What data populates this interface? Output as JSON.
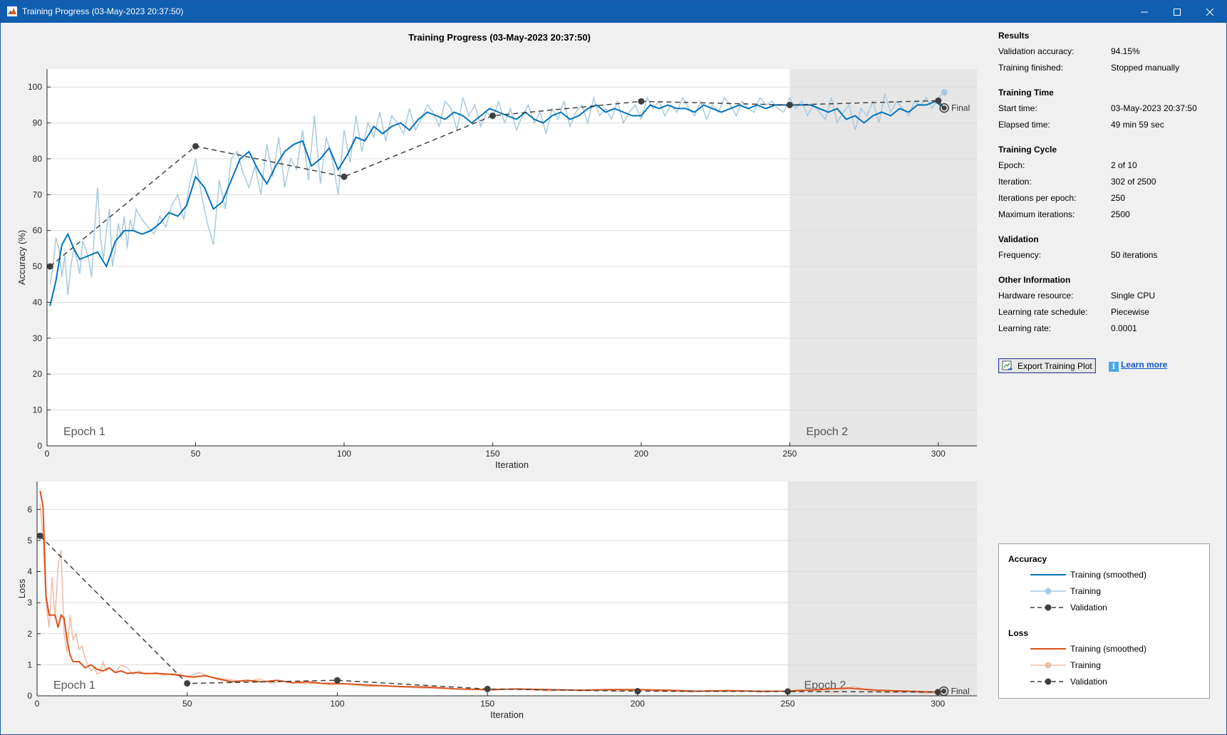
{
  "window": {
    "title": "Training Progress (03-May-2023 20:37:50)"
  },
  "plot_title": "Training Progress (03-May-2023 20:37:50)",
  "colors": {
    "acc_smoothed": "#0072bd",
    "acc_raw": "#a9c9de",
    "loss_smoothed": "#d95319",
    "loss_raw": "#eebca8",
    "validation": "#404040",
    "epoch_shade": "#e6e6e6",
    "title_bar": "#0f5eb0"
  },
  "info": {
    "results": {
      "heading": "Results",
      "rows": [
        {
          "label": "Validation accuracy:",
          "value": "94.15%"
        },
        {
          "label": "Training finished:",
          "value": "Stopped manually"
        }
      ]
    },
    "time": {
      "heading": "Training Time",
      "rows": [
        {
          "label": "Start time:",
          "value": "03-May-2023 20:37:50"
        },
        {
          "label": "Elapsed time:",
          "value": "49 min 59 sec"
        }
      ]
    },
    "cycle": {
      "heading": "Training Cycle",
      "rows": [
        {
          "label": "Epoch:",
          "value": "2 of 10"
        },
        {
          "label": "Iteration:",
          "value": "302 of 2500"
        },
        {
          "label": "Iterations per epoch:",
          "value": "250"
        },
        {
          "label": "Maximum iterations:",
          "value": "2500"
        }
      ]
    },
    "validation": {
      "heading": "Validation",
      "rows": [
        {
          "label": "Frequency:",
          "value": "50 iterations"
        }
      ]
    },
    "other": {
      "heading": "Other Information",
      "rows": [
        {
          "label": "Hardware resource:",
          "value": "Single CPU"
        },
        {
          "label": "Learning rate schedule:",
          "value": "Piecewise"
        },
        {
          "label": "Learning rate:",
          "value": "0.0001"
        }
      ]
    }
  },
  "buttons": {
    "export": "Export Training Plot",
    "learn_more": "Learn more"
  },
  "legend": {
    "accuracy": {
      "heading": "Accuracy",
      "smoothed": "Training (smoothed)",
      "raw": "Training",
      "validation": "Validation"
    },
    "loss": {
      "heading": "Loss",
      "smoothed": "Training (smoothed)",
      "raw": "Training",
      "validation": "Validation"
    }
  },
  "chart_data": [
    {
      "type": "line",
      "xlabel": "Iteration",
      "ylabel": "Accuracy (%)",
      "xlim": [
        0,
        313
      ],
      "ylim": [
        0,
        105
      ],
      "xticks": [
        0,
        50,
        100,
        150,
        200,
        250,
        300
      ],
      "yticks": [
        0,
        10,
        20,
        30,
        40,
        50,
        60,
        70,
        80,
        90,
        100
      ],
      "grid": "horizontal",
      "epochs": [
        {
          "label": "Epoch 1",
          "start": 0,
          "end": 250
        },
        {
          "label": "Epoch 2",
          "start": 250,
          "end": 313
        }
      ],
      "final_label": "Final",
      "final_value": [
        302,
        94.15
      ],
      "last_raw_point": [
        302,
        98.5
      ],
      "series": [
        {
          "name": "Training (smoothed)",
          "style": "smoothed",
          "x": [
            1,
            3,
            5,
            7,
            9,
            11,
            14,
            17,
            20,
            23,
            26,
            29,
            32,
            35,
            38,
            41,
            44,
            47,
            50,
            53,
            56,
            59,
            62,
            65,
            68,
            71,
            74,
            77,
            80,
            83,
            86,
            89,
            92,
            95,
            98,
            101,
            104,
            107,
            110,
            113,
            116,
            119,
            122,
            125,
            128,
            131,
            134,
            137,
            140,
            143,
            146,
            149,
            152,
            155,
            158,
            161,
            164,
            167,
            170,
            173,
            176,
            179,
            182,
            185,
            188,
            191,
            194,
            197,
            200,
            203,
            206,
            209,
            212,
            215,
            218,
            221,
            224,
            227,
            230,
            233,
            236,
            239,
            242,
            245,
            248,
            251,
            254,
            257,
            260,
            263,
            266,
            269,
            272,
            275,
            278,
            281,
            284,
            287,
            290,
            293,
            296,
            299,
            302
          ],
          "y": [
            39,
            46,
            56,
            59,
            55,
            52,
            53,
            54,
            50,
            57,
            60,
            60,
            59,
            60,
            62,
            65,
            64,
            67,
            75,
            72,
            66,
            68,
            74,
            80,
            82,
            77,
            73,
            78,
            82,
            84,
            85,
            78,
            80,
            83,
            77,
            81,
            86,
            85,
            89,
            87,
            89,
            90,
            88,
            91,
            93,
            92,
            91,
            93,
            92,
            90,
            92,
            94,
            93,
            92,
            91,
            93,
            91,
            90,
            92,
            93,
            91,
            92,
            94,
            95,
            93,
            94,
            93,
            92,
            92,
            95,
            94,
            95,
            94,
            94,
            93,
            95,
            94,
            93,
            94,
            95,
            94,
            95,
            94,
            95,
            95,
            95,
            95,
            95,
            94,
            93,
            94,
            91,
            92,
            90,
            92,
            93,
            92,
            94,
            93,
            95,
            95,
            96,
            94.15
          ]
        },
        {
          "name": "Training",
          "style": "raw",
          "x": [
            1,
            2,
            3,
            4,
            5,
            6,
            7,
            8,
            9,
            10,
            11,
            12,
            13,
            14,
            15,
            16,
            17,
            18,
            19,
            20,
            21,
            22,
            23,
            24,
            25,
            26,
            27,
            28,
            29,
            30,
            32,
            34,
            36,
            38,
            40,
            42,
            44,
            46,
            48,
            50,
            52,
            54,
            56,
            58,
            60,
            62,
            64,
            66,
            68,
            70,
            72,
            74,
            76,
            78,
            80,
            82,
            84,
            86,
            88,
            90,
            92,
            94,
            96,
            98,
            100,
            102,
            104,
            106,
            108,
            110,
            112,
            114,
            116,
            118,
            120,
            122,
            124,
            126,
            128,
            130,
            132,
            134,
            136,
            138,
            140,
            142,
            144,
            146,
            148,
            150,
            152,
            154,
            156,
            158,
            160,
            162,
            164,
            166,
            168,
            170,
            172,
            174,
            176,
            178,
            180,
            182,
            184,
            186,
            188,
            190,
            192,
            194,
            196,
            198,
            200,
            202,
            204,
            206,
            208,
            210,
            212,
            214,
            216,
            218,
            220,
            222,
            224,
            226,
            228,
            230,
            232,
            234,
            236,
            238,
            240,
            242,
            244,
            246,
            248,
            250,
            252,
            254,
            256,
            258,
            260,
            262,
            264,
            266,
            268,
            270,
            272,
            274,
            276,
            278,
            280,
            282,
            284,
            286,
            288,
            290,
            292,
            294,
            296,
            298,
            300,
            302
          ],
          "y": [
            45,
            50,
            58,
            55,
            47,
            53,
            42,
            50,
            55,
            52,
            48,
            57,
            55,
            52,
            47,
            60,
            72,
            58,
            52,
            60,
            66,
            50,
            55,
            62,
            58,
            64,
            55,
            63,
            60,
            66,
            63,
            61,
            59,
            64,
            61,
            67,
            70,
            63,
            73,
            80,
            70,
            62,
            56,
            74,
            66,
            80,
            82,
            76,
            72,
            78,
            70,
            84,
            75,
            86,
            72,
            80,
            77,
            88,
            74,
            92,
            73,
            86,
            80,
            70,
            88,
            79,
            92,
            82,
            90,
            86,
            93,
            85,
            92,
            90,
            87,
            94,
            88,
            91,
            95,
            93,
            89,
            96,
            94,
            88,
            97,
            92,
            95,
            89,
            93,
            91,
            96,
            90,
            94,
            88,
            92,
            95,
            90,
            93,
            87,
            94,
            91,
            96,
            89,
            93,
            95,
            90,
            97,
            92,
            94,
            91,
            96,
            90,
            93,
            95,
            91,
            97,
            94,
            96,
            92,
            95,
            93,
            97,
            94,
            92,
            96,
            91,
            95,
            93,
            97,
            95,
            92,
            96,
            94,
            93,
            97,
            95,
            96,
            94,
            93,
            97,
            94,
            96,
            92,
            95,
            93,
            91,
            97,
            90,
            93,
            95,
            88,
            94,
            92,
            96,
            90,
            98,
            93,
            96,
            94,
            92,
            96,
            95,
            97,
            94,
            97,
            98.5
          ]
        },
        {
          "name": "Validation",
          "style": "validation",
          "x": [
            1,
            50,
            100,
            150,
            200,
            250,
            300,
            302
          ],
          "y": [
            50,
            83.5,
            75,
            92,
            96,
            95,
            96.2,
            94.15
          ]
        }
      ]
    },
    {
      "type": "line",
      "xlabel": "Iteration",
      "ylabel": "Loss",
      "xlim": [
        0,
        313
      ],
      "ylim": [
        0,
        6.9
      ],
      "xticks": [
        0,
        50,
        100,
        150,
        200,
        250,
        300
      ],
      "yticks": [
        0,
        1,
        2,
        3,
        4,
        5,
        6
      ],
      "grid": "horizontal",
      "epochs": [
        {
          "label": "Epoch 1",
          "start": 0,
          "end": 250
        },
        {
          "label": "Epoch 2",
          "start": 250,
          "end": 313
        }
      ],
      "final_label": "Final",
      "final_value": [
        302,
        0.15
      ],
      "series": [
        {
          "name": "Training (smoothed)",
          "style": "smoothed",
          "x": [
            1,
            2,
            3,
            4,
            5,
            6,
            7,
            8,
            9,
            10,
            11,
            12,
            14,
            16,
            18,
            20,
            22,
            24,
            26,
            28,
            30,
            33,
            36,
            40,
            44,
            48,
            52,
            56,
            60,
            65,
            70,
            75,
            80,
            85,
            90,
            95,
            100,
            110,
            120,
            130,
            140,
            150,
            160,
            170,
            180,
            190,
            200,
            210,
            220,
            230,
            240,
            250,
            260,
            270,
            280,
            290,
            300,
            302
          ],
          "y": [
            6.6,
            6.1,
            3.2,
            2.6,
            2.6,
            2.6,
            2.2,
            2.6,
            2.5,
            1.8,
            1.3,
            1.1,
            1.1,
            0.9,
            1.0,
            0.85,
            0.8,
            0.9,
            0.75,
            0.8,
            0.72,
            0.75,
            0.72,
            0.72,
            0.7,
            0.65,
            0.6,
            0.65,
            0.55,
            0.45,
            0.5,
            0.45,
            0.5,
            0.42,
            0.45,
            0.4,
            0.4,
            0.35,
            0.3,
            0.28,
            0.22,
            0.2,
            0.22,
            0.2,
            0.18,
            0.2,
            0.2,
            0.18,
            0.15,
            0.17,
            0.15,
            0.15,
            0.2,
            0.25,
            0.18,
            0.15,
            0.12,
            0.15
          ]
        },
        {
          "name": "Training",
          "style": "raw",
          "x": [
            1,
            2,
            3,
            4,
            5,
            6,
            7,
            8,
            9,
            10,
            11,
            12,
            13,
            14,
            15,
            16,
            17,
            18,
            19,
            20,
            21,
            22,
            23,
            24,
            25,
            26,
            28,
            30,
            32,
            34,
            36,
            38,
            40,
            42,
            44,
            46,
            48,
            50,
            54,
            58,
            62,
            66,
            70,
            74,
            78,
            82,
            86,
            90,
            94,
            98,
            102,
            106,
            110,
            116,
            122,
            128,
            134,
            140,
            146,
            152,
            158,
            164,
            170,
            176,
            182,
            188,
            194,
            200,
            206,
            212,
            218,
            224,
            230,
            236,
            242,
            248,
            254,
            260,
            266,
            272,
            278,
            284,
            290,
            296,
            302
          ],
          "y": [
            6.2,
            5.0,
            3.0,
            2.2,
            3.8,
            2.5,
            4.2,
            4.7,
            2.0,
            1.4,
            2.6,
            1.8,
            2.0,
            1.5,
            1.6,
            1.2,
            1.0,
            0.8,
            0.9,
            0.7,
            0.75,
            1.1,
            0.8,
            0.9,
            0.85,
            0.75,
            1.0,
            0.9,
            0.7,
            0.8,
            0.7,
            0.72,
            0.75,
            0.65,
            0.7,
            0.72,
            0.68,
            0.6,
            0.75,
            0.6,
            0.55,
            0.5,
            0.45,
            0.55,
            0.4,
            0.48,
            0.42,
            0.38,
            0.42,
            0.35,
            0.4,
            0.35,
            0.3,
            0.32,
            0.28,
            0.25,
            0.24,
            0.22,
            0.2,
            0.18,
            0.22,
            0.2,
            0.15,
            0.2,
            0.16,
            0.18,
            0.14,
            0.2,
            0.15,
            0.16,
            0.12,
            0.18,
            0.14,
            0.15,
            0.12,
            0.15,
            0.2,
            0.16,
            0.12,
            0.3,
            0.15,
            0.1,
            0.14,
            0.08,
            0.12
          ]
        },
        {
          "name": "Validation",
          "style": "validation",
          "x": [
            1,
            50,
            100,
            150,
            200,
            250,
            300,
            302
          ],
          "y": [
            5.15,
            0.4,
            0.5,
            0.22,
            0.15,
            0.14,
            0.12,
            0.15
          ]
        }
      ]
    }
  ]
}
